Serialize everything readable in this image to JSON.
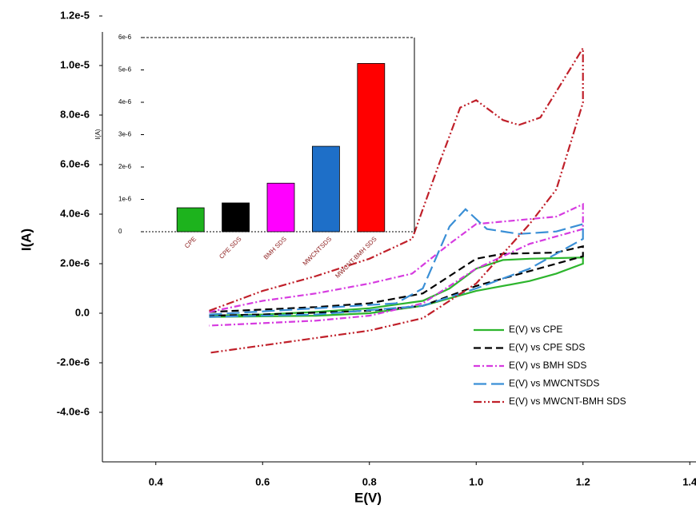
{
  "chart_data": [
    {
      "type": "line",
      "x_label": "E(V)",
      "y_label": "I(A)",
      "xlim": [
        0.3,
        1.42
      ],
      "xticks": [
        0.4,
        0.6,
        0.8,
        {
          "value": 1,
          "label": "1.0"
        },
        1.2,
        1.4
      ],
      "ylim": [
        -6e-06,
        1.2e-05
      ],
      "yticks": [
        {
          "value": 1.2e-05,
          "label": "1.2e-5"
        },
        {
          "value": 1e-05,
          "label": "1.0e-5"
        },
        {
          "value": 8e-06,
          "label": "8.0e-6"
        },
        {
          "value": 6e-06,
          "label": "6.0e-6"
        },
        {
          "value": 4e-06,
          "label": "4.0e-6"
        },
        {
          "value": 2e-06,
          "label": "2.0e-6"
        },
        {
          "value": 0,
          "label": "0.0"
        },
        {
          "value": -2e-06,
          "label": "-2.0e-6"
        },
        {
          "value": -4e-06,
          "label": "-4.0e-6"
        }
      ],
      "legend": "lower right",
      "series": [
        {
          "name": "E(V) vs CPE",
          "color": "#2db52d",
          "style": "solid",
          "x": [
            0.5,
            0.6,
            0.7,
            0.8,
            0.9,
            0.95,
            1.0,
            1.05,
            1.1,
            1.2,
            1.2,
            1.15,
            1.1,
            1.0,
            0.9,
            0.8,
            0.7,
            0.5
          ],
          "values": [
            -1e-07,
            -5e-08,
            5e-08,
            2e-07,
            5e-07,
            1e-06,
            1.8e-06,
            2.15e-06,
            2.2e-06,
            2.25e-06,
            2e-06,
            1.6e-06,
            1.3e-06,
            9e-07,
            3e-07,
            0,
            -1e-07,
            -1.5e-07
          ]
        },
        {
          "name": "E(V) vs CPE SDS",
          "color": "#000000",
          "style": "dashed",
          "x": [
            0.5,
            0.6,
            0.7,
            0.8,
            0.9,
            0.95,
            1.0,
            1.05,
            1.15,
            1.2,
            1.2,
            1.1,
            1.0,
            0.9,
            0.8,
            0.6,
            0.5
          ],
          "values": [
            5e-08,
            1.5e-07,
            2.5e-07,
            4e-07,
            8e-07,
            1.5e-06,
            2.2e-06,
            2.4e-06,
            2.45e-06,
            2.7e-06,
            2.3e-06,
            1.7e-06,
            1.1e-06,
            3e-07,
            1e-07,
            -5e-08,
            -1e-07
          ]
        },
        {
          "name": "E(V) vs BMH SDS",
          "color": "#d63be0",
          "style": "dashdot",
          "x": [
            0.5,
            0.6,
            0.7,
            0.8,
            0.88,
            0.95,
            1.0,
            1.05,
            1.15,
            1.2,
            1.2,
            1.1,
            1.0,
            0.9,
            0.8,
            0.7,
            0.5
          ],
          "values": [
            5e-08,
            5e-07,
            8e-07,
            1.2e-06,
            1.6e-06,
            2.8e-06,
            3.6e-06,
            3.7e-06,
            3.9e-06,
            4.4e-06,
            3.4e-06,
            2.8e-06,
            1.8e-06,
            4e-07,
            -1e-07,
            -3e-07,
            -5e-07
          ]
        },
        {
          "name": "E(V) vs MWCNTSDS",
          "color": "#3a8fd6",
          "style": "longdash",
          "x": [
            0.5,
            0.7,
            0.85,
            0.9,
            0.95,
            0.98,
            1.02,
            1.08,
            1.15,
            1.2,
            1.2,
            1.1,
            1.0,
            0.9,
            0.7,
            0.5
          ],
          "values": [
            -5e-08,
            2e-07,
            4e-07,
            1e-06,
            3.5e-06,
            4.2e-06,
            3.4e-06,
            3.2e-06,
            3.3e-06,
            3.6e-06,
            3e-06,
            1.8e-06,
            1e-06,
            3e-07,
            -5e-08,
            -1.5e-07
          ]
        },
        {
          "name": "E(V) vs MWCNT-BMH SDS",
          "color": "#c0202a",
          "style": "dashdotdot",
          "x": [
            0.5,
            0.6,
            0.7,
            0.8,
            0.88,
            0.93,
            0.97,
            1.0,
            1.05,
            1.08,
            1.12,
            1.2,
            1.2,
            1.15,
            1.1,
            1.0,
            0.9,
            0.8,
            0.7,
            0.5
          ],
          "values": [
            1e-07,
            9e-07,
            1.5e-06,
            2.2e-06,
            3e-06,
            6e-06,
            8.3e-06,
            8.6e-06,
            7.8e-06,
            7.6e-06,
            7.9e-06,
            1.07e-05,
            8.5e-06,
            5e-06,
            3.6e-06,
            1.2e-06,
            -2e-07,
            -7e-07,
            -1e-06,
            -1.6e-06
          ]
        }
      ]
    },
    {
      "type": "bar",
      "y_label": "I(A)",
      "categories": [
        "CPE",
        "CPE SDS",
        "BMH SDS",
        "MWCNTSDS",
        "MWCNT-BMH SDS"
      ],
      "values": [
        7.4e-07,
        8.9e-07,
        1.5e-06,
        2.64e-06,
        5.2e-06
      ],
      "colors": [
        "#1db31d",
        "#000000",
        "#ff00ff",
        "#1e6fc8",
        "#ff0000"
      ],
      "ylim": [
        0,
        6e-06
      ],
      "yticks": [
        0,
        {
          "value": 1e-06,
          "label": "1e-6"
        },
        {
          "value": 2e-06,
          "label": "2e-6"
        },
        {
          "value": 3e-06,
          "label": "3e-6"
        },
        {
          "value": 4e-06,
          "label": "4e-6"
        },
        {
          "value": 5e-06,
          "label": "5e-6"
        },
        {
          "value": 6e-06,
          "label": "6e-6"
        }
      ]
    }
  ]
}
